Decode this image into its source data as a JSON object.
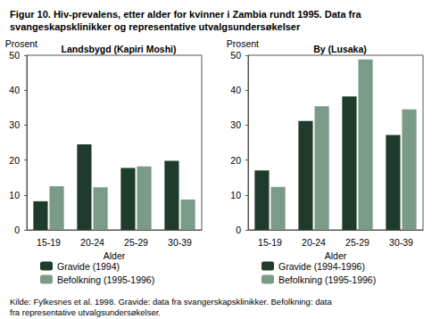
{
  "figure_title": "Figur 10. Hiv-prevalens, etter alder for kvinner i Zambia rundt 1995. Data fra svangeskapsklinikker og representative utvalgsundersøkelser",
  "source": "Kilde: Fylkesnes et al. 1998. Gravide: data fra svangerskapsklinikker. Befolkning: data fra representative utvalgsundersøkelser.",
  "chart_data": [
    {
      "type": "bar",
      "title": "Landsbygd (Kapiri Moshi)",
      "categories": [
        "15-19",
        "20-24",
        "25-29",
        "30-39"
      ],
      "series": [
        {
          "name": "Gravide (1994)",
          "color": "#1f3b2c",
          "values": [
            8.2,
            24.5,
            17.7,
            19.8
          ]
        },
        {
          "name": "Befolkning (1995-1996)",
          "color": "#7b9b89",
          "values": [
            12.5,
            12.2,
            18.2,
            8.7
          ]
        }
      ],
      "xlabel": "Alder",
      "ylabel": "Prosent",
      "ylim": [
        0,
        50
      ],
      "yticks": [
        0,
        10,
        20,
        30,
        40,
        50
      ],
      "grid": false,
      "legend": "bottom"
    },
    {
      "type": "bar",
      "title": "By (Lusaka)",
      "categories": [
        "15-19",
        "20-24",
        "25-29",
        "30-39"
      ],
      "series": [
        {
          "name": "Gravide (1994-1996)",
          "color": "#1f3b2c",
          "values": [
            17.0,
            31.2,
            38.2,
            27.2
          ]
        },
        {
          "name": "Befolkning (1995-1996)",
          "color": "#7b9b89",
          "values": [
            12.3,
            35.4,
            48.8,
            34.5
          ]
        }
      ],
      "xlabel": "Alder",
      "ylabel": "Prosent",
      "ylim": [
        0,
        50
      ],
      "yticks": [
        0,
        10,
        20,
        30,
        40,
        50
      ],
      "grid": false,
      "legend": "bottom"
    }
  ]
}
